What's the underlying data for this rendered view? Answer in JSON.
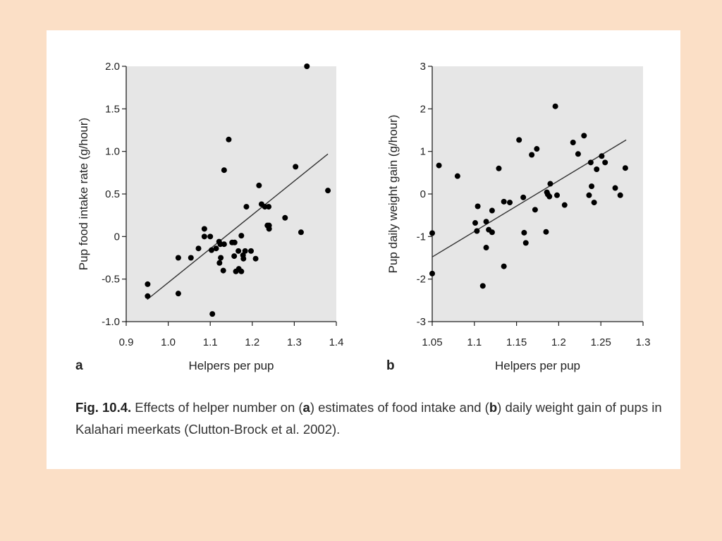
{
  "chart_data": [
    {
      "type": "scatter",
      "panel_label": "a",
      "xlabel": "Helpers per pup",
      "ylabel": "Pup food intake rate (g/hour)",
      "xlim": [
        0.9,
        1.4
      ],
      "ylim": [
        -1.0,
        2.0
      ],
      "xticks": [
        "0.9",
        "1.0",
        "1.1",
        "1.2",
        "1.3",
        "1.4"
      ],
      "yticks": [
        "-1.0",
        "-0.5",
        "0",
        "0.5",
        "1.0",
        "1.5",
        "2.0"
      ],
      "grid": false,
      "points": [
        [
          1.33,
          2.0
        ],
        [
          1.144,
          1.14
        ],
        [
          1.133,
          0.78
        ],
        [
          1.303,
          0.82
        ],
        [
          1.38,
          0.54
        ],
        [
          1.216,
          0.6
        ],
        [
          1.186,
          0.35
        ],
        [
          1.222,
          0.38
        ],
        [
          1.23,
          0.35
        ],
        [
          1.239,
          0.35
        ],
        [
          1.278,
          0.22
        ],
        [
          1.236,
          0.13
        ],
        [
          1.24,
          0.13
        ],
        [
          1.24,
          0.09
        ],
        [
          1.316,
          0.05
        ],
        [
          1.086,
          0.09
        ],
        [
          1.086,
          0.0
        ],
        [
          1.1,
          0.0
        ],
        [
          1.174,
          0.01
        ],
        [
          1.072,
          -0.14
        ],
        [
          1.103,
          -0.16
        ],
        [
          1.114,
          -0.14
        ],
        [
          1.121,
          -0.06
        ],
        [
          1.124,
          -0.09
        ],
        [
          1.133,
          -0.09
        ],
        [
          1.152,
          -0.07
        ],
        [
          1.158,
          -0.07
        ],
        [
          1.167,
          -0.17
        ],
        [
          1.183,
          -0.17
        ],
        [
          1.197,
          -0.17
        ],
        [
          1.157,
          -0.23
        ],
        [
          1.178,
          -0.22
        ],
        [
          1.179,
          -0.26
        ],
        [
          1.208,
          -0.26
        ],
        [
          1.125,
          -0.25
        ],
        [
          1.122,
          -0.31
        ],
        [
          1.024,
          -0.25
        ],
        [
          1.054,
          -0.25
        ],
        [
          1.131,
          -0.4
        ],
        [
          1.161,
          -0.41
        ],
        [
          1.168,
          -0.38
        ],
        [
          1.174,
          -0.41
        ],
        [
          0.951,
          -0.56
        ],
        [
          0.951,
          -0.7
        ],
        [
          1.024,
          -0.67
        ],
        [
          1.105,
          -0.91
        ]
      ],
      "fit_line": [
        [
          0.95,
          -0.74
        ],
        [
          1.38,
          0.97
        ]
      ]
    },
    {
      "type": "scatter",
      "panel_label": "b",
      "xlabel": "Helpers per pup",
      "ylabel": "Pup daily weight gain (g/hour)",
      "xlim": [
        1.05,
        1.3
      ],
      "ylim": [
        -3,
        3
      ],
      "xticks": [
        "1.05",
        "1.1",
        "1.15",
        "1.2",
        "1.25",
        "1.3"
      ],
      "yticks": [
        "-3",
        "-2",
        "-1",
        "0",
        "1",
        "2",
        "3"
      ],
      "grid": false,
      "points": [
        [
          1.05,
          -0.92
        ],
        [
          1.05,
          -1.87
        ],
        [
          1.058,
          0.67
        ],
        [
          1.08,
          0.42
        ],
        [
          1.101,
          -0.68
        ],
        [
          1.104,
          -0.29
        ],
        [
          1.103,
          -0.87
        ],
        [
          1.11,
          -2.16
        ],
        [
          1.114,
          -0.65
        ],
        [
          1.114,
          -1.26
        ],
        [
          1.117,
          -0.84
        ],
        [
          1.121,
          -0.9
        ],
        [
          1.121,
          -0.39
        ],
        [
          1.129,
          0.6
        ],
        [
          1.135,
          -0.18
        ],
        [
          1.135,
          -1.7
        ],
        [
          1.142,
          -0.2
        ],
        [
          1.153,
          1.27
        ],
        [
          1.158,
          -0.08
        ],
        [
          1.159,
          -0.91
        ],
        [
          1.161,
          -1.15
        ],
        [
          1.168,
          0.92
        ],
        [
          1.174,
          1.06
        ],
        [
          1.172,
          -0.37
        ],
        [
          1.185,
          -0.89
        ],
        [
          1.186,
          0.04
        ],
        [
          1.187,
          -0.01
        ],
        [
          1.19,
          0.24
        ],
        [
          1.189,
          -0.06
        ],
        [
          1.196,
          2.06
        ],
        [
          1.198,
          -0.03
        ],
        [
          1.207,
          -0.26
        ],
        [
          1.217,
          1.21
        ],
        [
          1.223,
          0.94
        ],
        [
          1.23,
          1.37
        ],
        [
          1.236,
          -0.03
        ],
        [
          1.238,
          0.74
        ],
        [
          1.239,
          0.18
        ],
        [
          1.242,
          -0.2
        ],
        [
          1.245,
          0.58
        ],
        [
          1.251,
          0.89
        ],
        [
          1.255,
          0.74
        ],
        [
          1.267,
          0.14
        ],
        [
          1.273,
          -0.03
        ],
        [
          1.279,
          0.61
        ]
      ],
      "fit_line": [
        [
          1.05,
          -1.48
        ],
        [
          1.28,
          1.27
        ]
      ]
    }
  ],
  "caption": {
    "fig_label": "Fig. 10.4.",
    "t1": " Effects of helper number on (",
    "a": "a",
    "t2": ") estimates of food intake and (",
    "b": "b",
    "t3": ") daily weight gain of pups in Kalahari meerkats (Clutton-Brock et al. 2002)."
  },
  "colors": {
    "background": "#fbdfc6",
    "panel": "#ffffff",
    "plot_bg": "#e6e6e6",
    "marker": "#000000"
  }
}
